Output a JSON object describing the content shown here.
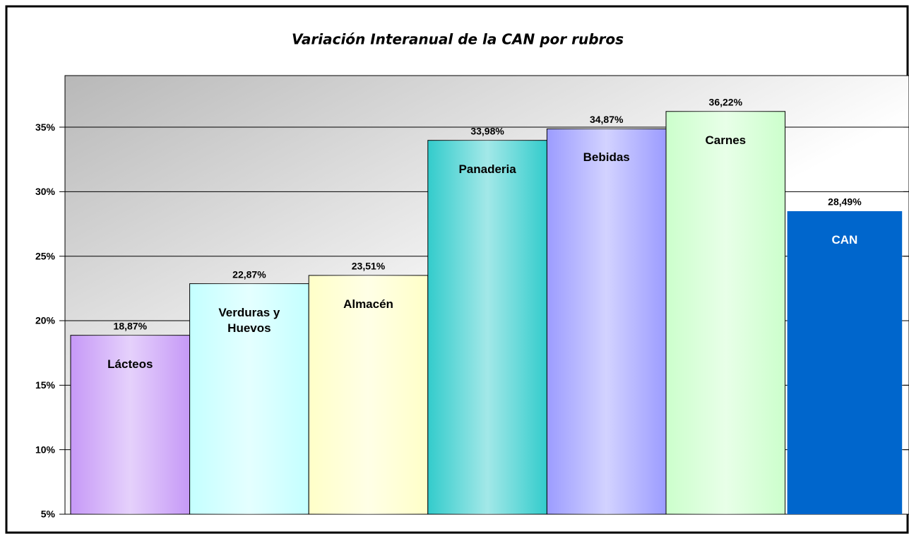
{
  "chart_data": {
    "type": "bar",
    "title": "Variación Interanual de la CAN por rubros",
    "categories": [
      "Lácteos",
      "Verduras y Huevos",
      "Almacén",
      "Panaderia",
      "Bebidas",
      "Carnes",
      "CAN"
    ],
    "values": [
      18.87,
      22.87,
      23.51,
      33.98,
      34.87,
      36.22,
      28.49
    ],
    "value_labels": [
      "18,87%",
      "22,87%",
      "23,51%",
      "33,98%",
      "34,87%",
      "36,22%",
      "28,49%"
    ],
    "colors": [
      "#c699f7",
      "#c4ffff",
      "#ffffc8",
      "#33cccc",
      "#9c9cff",
      "#ccffcc",
      "#0066cc"
    ],
    "ylim": [
      5,
      39
    ],
    "yticks": [
      {
        "value": 5,
        "label": "5%"
      },
      {
        "value": 10,
        "label": "10%"
      },
      {
        "value": 15,
        "label": "15%"
      },
      {
        "value": 20,
        "label": "20%"
      },
      {
        "value": 25,
        "label": "25%"
      },
      {
        "value": 30,
        "label": "30%"
      },
      {
        "value": 35,
        "label": "35%"
      }
    ],
    "grid": true
  }
}
